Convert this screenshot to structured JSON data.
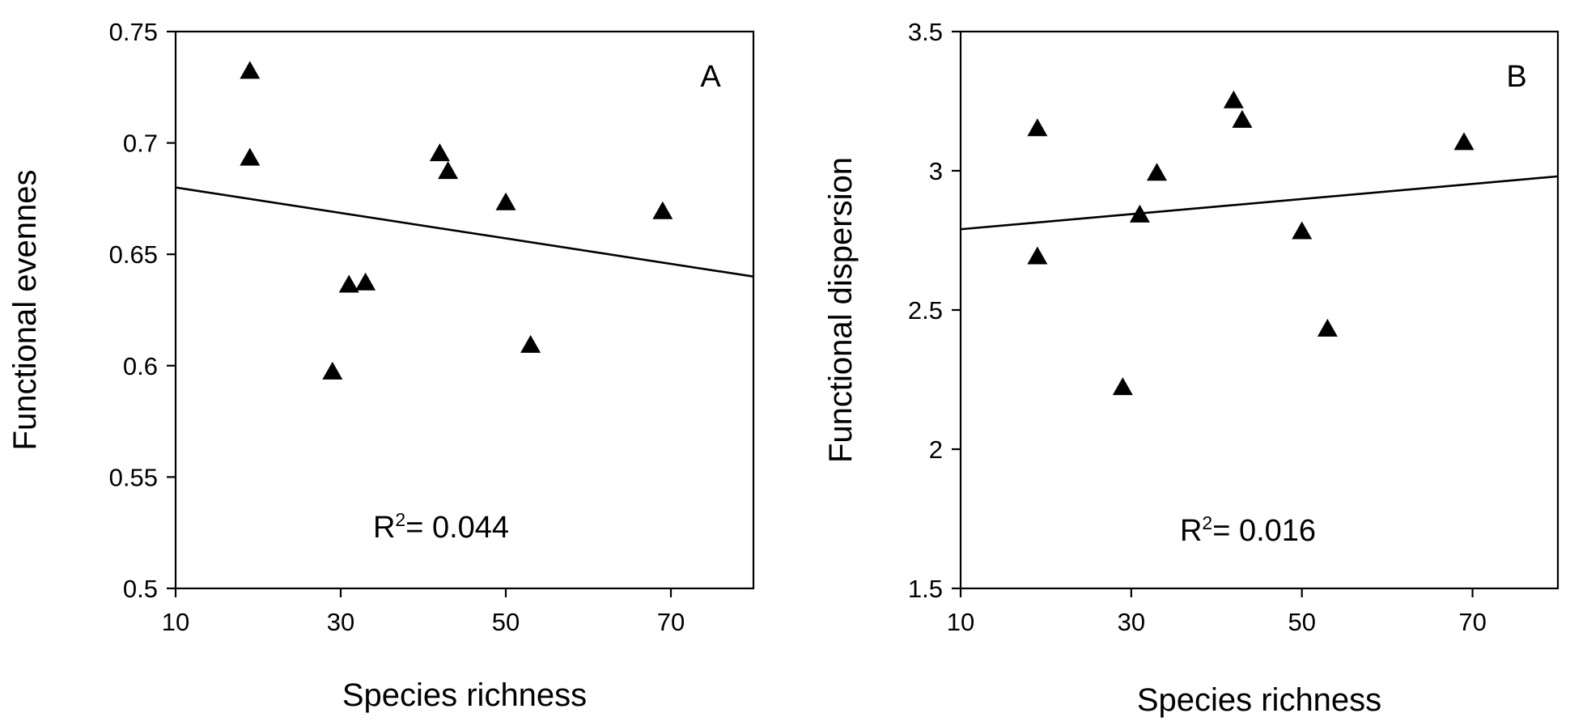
{
  "chart_data": [
    {
      "type": "scatter",
      "panel_label": "A",
      "xlabel": "Species richness",
      "ylabel": "Functional evennes",
      "xlim": [
        10,
        80
      ],
      "ylim": [
        0.5,
        0.75
      ],
      "x_ticks": [
        10,
        30,
        50,
        70
      ],
      "x_tick_labels": [
        "10",
        "30",
        "50",
        "70"
      ],
      "y_ticks": [
        0.5,
        0.55,
        0.6,
        0.65,
        0.7,
        0.75
      ],
      "y_tick_labels": [
        "0.5",
        "0.55",
        "0.6",
        "0.65",
        "0.7",
        "0.75"
      ],
      "points": [
        {
          "x": 19,
          "y": 0.732
        },
        {
          "x": 19,
          "y": 0.693
        },
        {
          "x": 29,
          "y": 0.597
        },
        {
          "x": 31,
          "y": 0.636
        },
        {
          "x": 33,
          "y": 0.637
        },
        {
          "x": 42,
          "y": 0.695
        },
        {
          "x": 43,
          "y": 0.687
        },
        {
          "x": 50,
          "y": 0.673
        },
        {
          "x": 53,
          "y": 0.609
        },
        {
          "x": 69,
          "y": 0.669
        }
      ],
      "fit_line": {
        "x": [
          10,
          80
        ],
        "y": [
          0.68,
          0.64
        ]
      },
      "annotation": {
        "prefix": "R",
        "superscript": "2",
        "text": "= 0.044"
      },
      "marker": "filled-triangle",
      "grid": false,
      "legend": "none"
    },
    {
      "type": "scatter",
      "panel_label": "B",
      "xlabel": "Species richness",
      "ylabel": "Functional dispersion",
      "xlim": [
        10,
        80
      ],
      "ylim": [
        1.5,
        3.5
      ],
      "x_ticks": [
        10,
        30,
        50,
        70
      ],
      "x_tick_labels": [
        "10",
        "30",
        "50",
        "70"
      ],
      "y_ticks": [
        1.5,
        2,
        2.5,
        3,
        3.5
      ],
      "y_tick_labels": [
        "1.5",
        "2",
        "2.5",
        "3",
        "3.5"
      ],
      "points": [
        {
          "x": 19,
          "y": 3.15
        },
        {
          "x": 19,
          "y": 2.69
        },
        {
          "x": 29,
          "y": 2.22
        },
        {
          "x": 31,
          "y": 2.84
        },
        {
          "x": 33,
          "y": 2.99
        },
        {
          "x": 42,
          "y": 3.25
        },
        {
          "x": 43,
          "y": 3.18
        },
        {
          "x": 50,
          "y": 2.78
        },
        {
          "x": 53,
          "y": 2.43
        },
        {
          "x": 69,
          "y": 3.1
        }
      ],
      "fit_line": {
        "x": [
          10,
          80
        ],
        "y": [
          2.79,
          2.98
        ]
      },
      "annotation": {
        "prefix": "R",
        "superscript": "2",
        "text": "= 0.016"
      },
      "marker": "filled-triangle",
      "grid": false,
      "legend": "none"
    }
  ]
}
